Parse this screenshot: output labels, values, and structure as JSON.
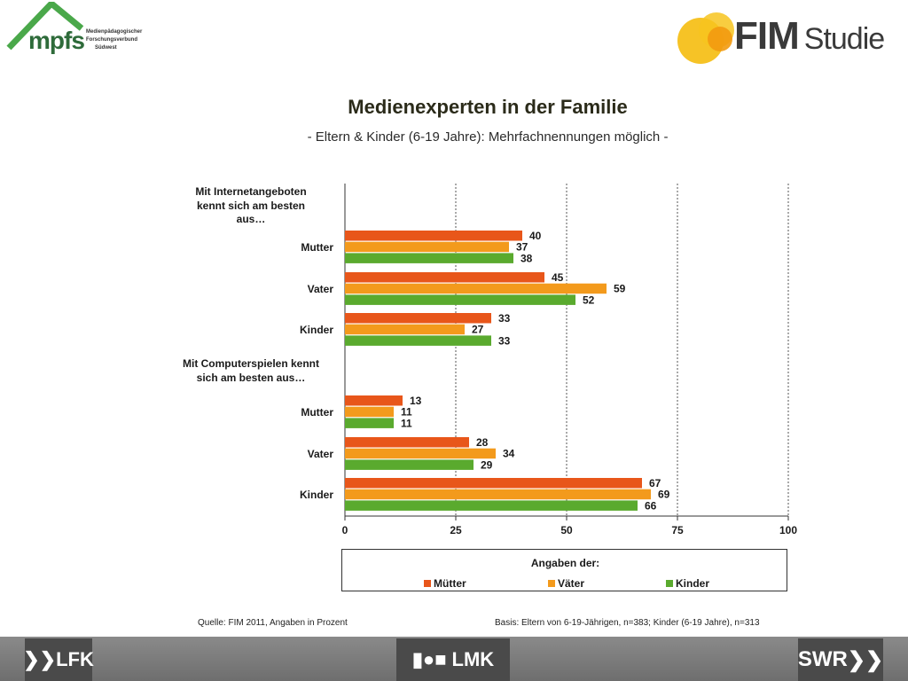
{
  "logos": {
    "mpfs": {
      "word": "mpfs",
      "subtitle_lines": [
        "Medienpädagogischer",
        "Forschungsverbund",
        "Südwest"
      ],
      "color": "#2e6b3a"
    },
    "fim": {
      "word": "FIM",
      "word2": "Studie",
      "accent_color": "#f5b800"
    },
    "lfk": "LFK",
    "lmk": "LMK",
    "swr": "SWR"
  },
  "footer": {
    "source": "Quelle: FIM 2011, Angaben in Prozent",
    "basis": "Basis: Eltern von 6-19-Jährigen, n=383; Kinder (6-19 Jahre), n=313"
  },
  "chart_data": {
    "type": "bar",
    "orientation": "horizontal",
    "title": "Medienexperten in der Familie",
    "subtitle": "- Eltern & Kinder (6-19 Jahre): Mehrfachnennungen möglich -",
    "xlim": [
      0,
      100
    ],
    "x_ticks": [
      0,
      25,
      50,
      75,
      100
    ],
    "grid": "vertical-dashed",
    "legend": {
      "title": "Angaben der:",
      "placement": "bottom"
    },
    "groups": [
      {
        "label": "Mit Internetangeboten kennt sich am besten aus…",
        "label_lines": [
          "Mit Internetangeboten",
          "kennt sich am besten",
          "aus…"
        ],
        "categories": [
          "Mutter",
          "Vater",
          "Kinder"
        ]
      },
      {
        "label": "Mit Computerspielen kennt sich am besten aus…",
        "label_lines": [
          "Mit Computerspielen kennt",
          "sich am besten aus…"
        ],
        "categories": [
          "Mutter",
          "Vater",
          "Kinder"
        ]
      }
    ],
    "series": [
      {
        "name": "Mütter",
        "color": "#e8561a",
        "values": [
          [
            40,
            45,
            33
          ],
          [
            13,
            28,
            67
          ]
        ]
      },
      {
        "name": "Väter",
        "color": "#f39a1c",
        "values": [
          [
            37,
            59,
            27
          ],
          [
            11,
            34,
            69
          ]
        ]
      },
      {
        "name": "Kinder",
        "color": "#5aaa2e",
        "values": [
          [
            38,
            52,
            33
          ],
          [
            11,
            29,
            66
          ]
        ]
      }
    ]
  }
}
